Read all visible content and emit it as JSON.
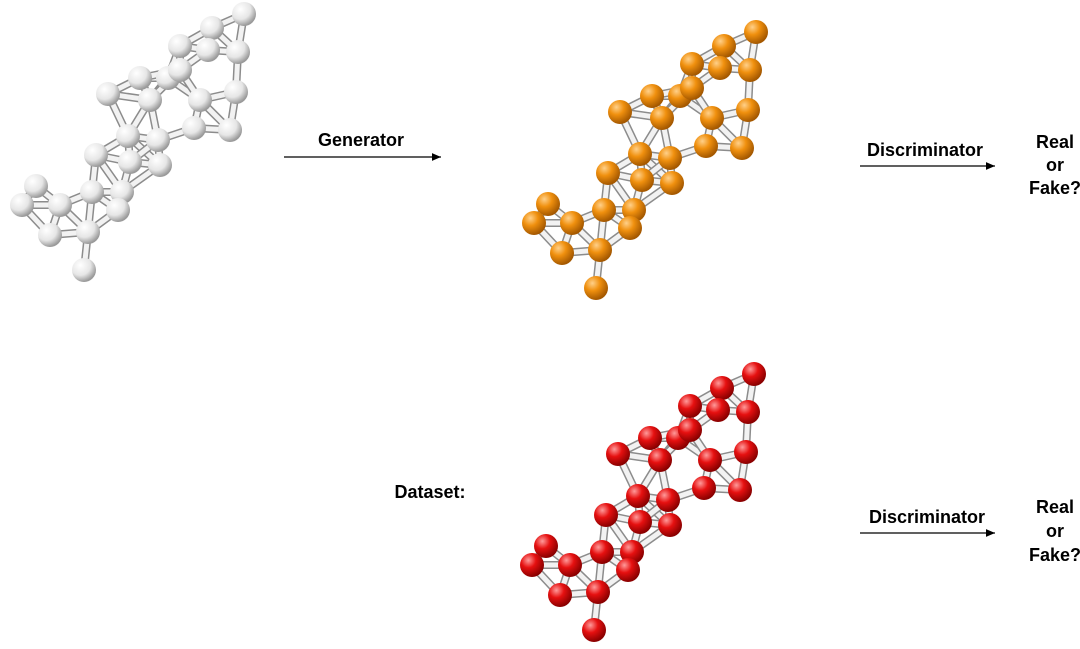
{
  "arrows": [
    {
      "label": "Generator"
    },
    {
      "label": "Discriminator"
    },
    {
      "label": "Discriminator"
    }
  ],
  "outputs": [
    {
      "lines": [
        "Real",
        "or",
        "Fake?"
      ]
    },
    {
      "lines": [
        "Real",
        "or",
        "Fake?"
      ]
    }
  ],
  "dataset_label": "Dataset:"
}
